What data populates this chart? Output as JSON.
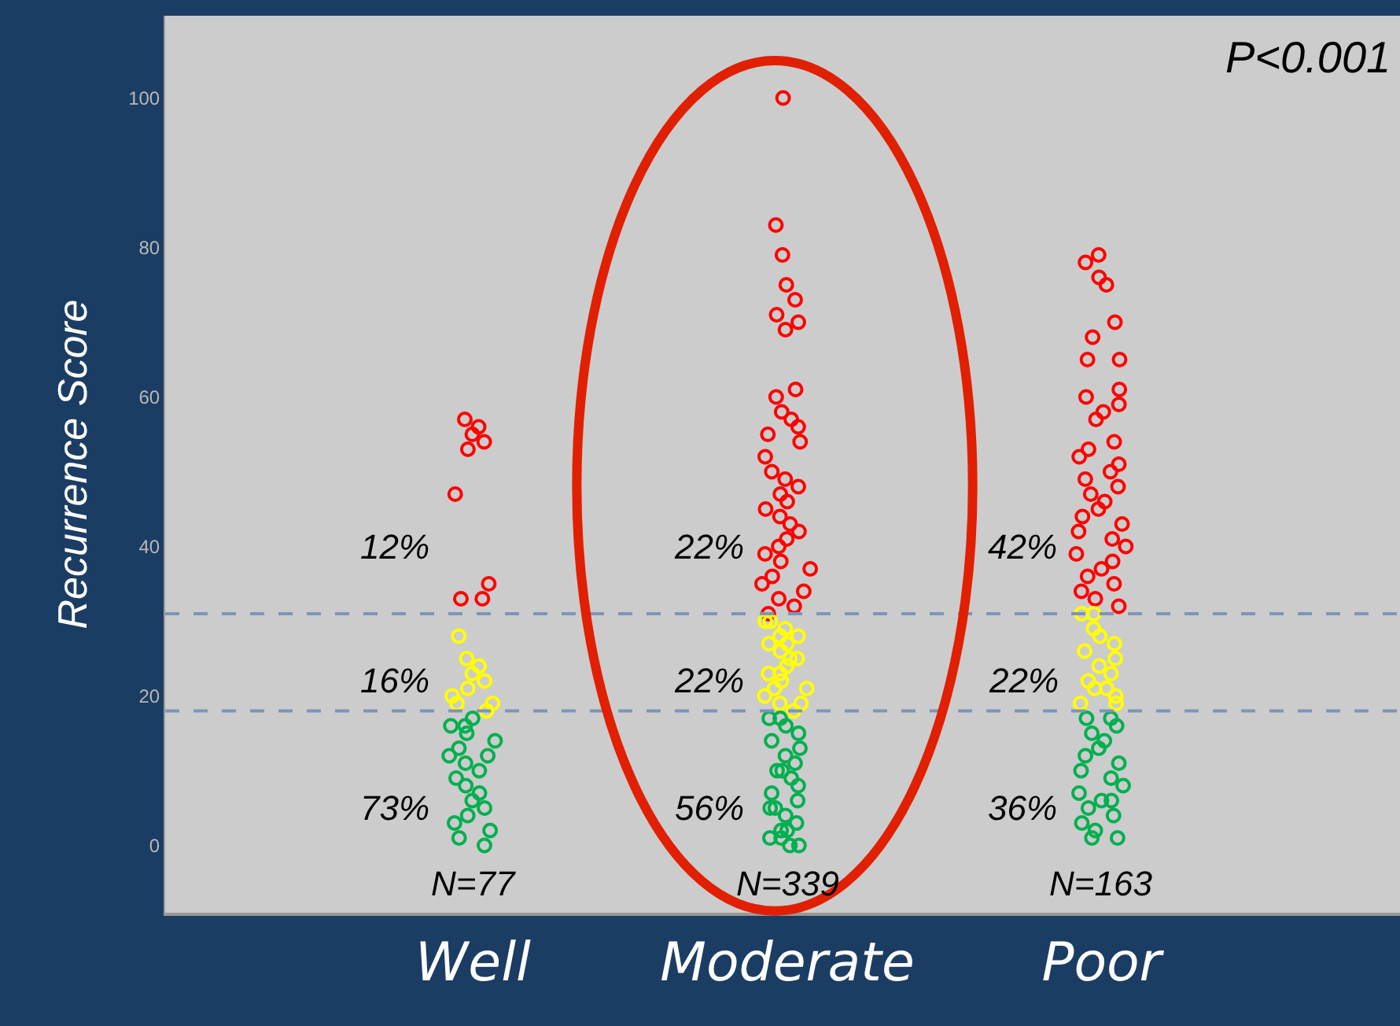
{
  "chart_data": {
    "type": "scatter",
    "ylabel": "Recurrence Score",
    "categories": [
      "Well",
      "Moderate",
      "Poor"
    ],
    "ylim": [
      -9,
      111
    ],
    "yticks": [
      0,
      20,
      40,
      60,
      80,
      100
    ],
    "grid": false,
    "marker": "circle",
    "series": [
      {
        "color": "#ff0000",
        "x": [
          "Well",
          "Well",
          "Well",
          "Well",
          "Well",
          "Well",
          "Well",
          "Well",
          "Well",
          "Moderate",
          "Moderate",
          "Moderate",
          "Moderate",
          "Moderate",
          "Moderate",
          "Moderate",
          "Moderate",
          "Moderate",
          "Moderate",
          "Moderate",
          "Moderate",
          "Moderate",
          "Moderate",
          "Moderate",
          "Moderate",
          "Moderate",
          "Moderate",
          "Moderate",
          "Moderate",
          "Moderate",
          "Moderate",
          "Moderate",
          "Moderate",
          "Moderate",
          "Moderate",
          "Moderate",
          "Moderate",
          "Moderate",
          "Moderate",
          "Moderate",
          "Moderate",
          "Moderate",
          "Moderate",
          "Moderate",
          "Moderate",
          "Poor",
          "Poor",
          "Poor",
          "Poor",
          "Poor",
          "Poor",
          "Poor",
          "Poor",
          "Poor",
          "Poor",
          "Poor",
          "Poor",
          "Poor",
          "Poor",
          "Poor",
          "Poor",
          "Poor",
          "Poor",
          "Poor",
          "Poor",
          "Poor",
          "Poor",
          "Poor",
          "Poor",
          "Poor",
          "Poor",
          "Poor",
          "Poor",
          "Poor",
          "Poor",
          "Poor",
          "Poor",
          "Poor",
          "Poor",
          "Poor",
          "Poor"
        ],
        "values": [
          57,
          56,
          55,
          54,
          53,
          47,
          35,
          33,
          33,
          100,
          83,
          79,
          75,
          73,
          71,
          70,
          69,
          61,
          60,
          58,
          57,
          56,
          55,
          54,
          52,
          50,
          49,
          48,
          47,
          46,
          45,
          44,
          43,
          42,
          41,
          40,
          39,
          38,
          37,
          36,
          35,
          34,
          33,
          32,
          31,
          79,
          78,
          75,
          76,
          70,
          68,
          65,
          65,
          60,
          61,
          59,
          58,
          57,
          54,
          53,
          52,
          51,
          50,
          49,
          48,
          47,
          46,
          45,
          44,
          43,
          42,
          41,
          40,
          39,
          38,
          37,
          36,
          35,
          34,
          33,
          32
        ]
      },
      {
        "color": "#ffff00",
        "x": [
          "Well",
          "Well",
          "Well",
          "Well",
          "Well",
          "Well",
          "Well",
          "Well",
          "Well",
          "Well",
          "Moderate",
          "Moderate",
          "Moderate",
          "Moderate",
          "Moderate",
          "Moderate",
          "Moderate",
          "Moderate",
          "Moderate",
          "Moderate",
          "Moderate",
          "Moderate",
          "Moderate",
          "Moderate",
          "Moderate",
          "Moderate",
          "Moderate",
          "Moderate",
          "Moderate",
          "Moderate",
          "Poor",
          "Poor",
          "Poor",
          "Poor",
          "Poor",
          "Poor",
          "Poor",
          "Poor",
          "Poor",
          "Poor",
          "Poor",
          "Poor",
          "Poor",
          "Poor",
          "Poor"
        ],
        "values": [
          28,
          25,
          24,
          23,
          22,
          21,
          20,
          19,
          19,
          18,
          30,
          30,
          29,
          28,
          28,
          27,
          27,
          26,
          25,
          25,
          24,
          23,
          23,
          22,
          21,
          21,
          20,
          19,
          19,
          18,
          31,
          31,
          29,
          28,
          27,
          26,
          25,
          24,
          23,
          22,
          21,
          21,
          20,
          19,
          19
        ]
      },
      {
        "color": "#00b050",
        "x": [
          "Well",
          "Well",
          "Well",
          "Well",
          "Well",
          "Well",
          "Well",
          "Well",
          "Well",
          "Well",
          "Well",
          "Well",
          "Well",
          "Well",
          "Well",
          "Well",
          "Well",
          "Well",
          "Well",
          "Well",
          "Moderate",
          "Moderate",
          "Moderate",
          "Moderate",
          "Moderate",
          "Moderate",
          "Moderate",
          "Moderate",
          "Moderate",
          "Moderate",
          "Moderate",
          "Moderate",
          "Moderate",
          "Moderate",
          "Moderate",
          "Moderate",
          "Moderate",
          "Moderate",
          "Moderate",
          "Moderate",
          "Moderate",
          "Moderate",
          "Moderate",
          "Moderate",
          "Poor",
          "Poor",
          "Poor",
          "Poor",
          "Poor",
          "Poor",
          "Poor",
          "Poor",
          "Poor",
          "Poor",
          "Poor",
          "Poor",
          "Poor",
          "Poor",
          "Poor",
          "Poor",
          "Poor",
          "Poor",
          "Poor",
          "Poor"
        ],
        "values": [
          17,
          16,
          16,
          15,
          14,
          13,
          12,
          12,
          11,
          10,
          9,
          8,
          7,
          6,
          5,
          4,
          3,
          2,
          1,
          0,
          17,
          17,
          16,
          15,
          14,
          13,
          12,
          11,
          10,
          10,
          9,
          8,
          7,
          6,
          5,
          5,
          4,
          3,
          2,
          2,
          1,
          1,
          0,
          0,
          17,
          17,
          16,
          15,
          14,
          13,
          12,
          11,
          10,
          9,
          6,
          8,
          7,
          6,
          5,
          4,
          3,
          2,
          1,
          1
        ]
      }
    ],
    "ref_lines": [
      {
        "axis": "y",
        "value": 31,
        "color": "#7f95b5",
        "line_style": "dashed"
      },
      {
        "axis": "y",
        "value": 18,
        "color": "#7f95b5",
        "line_style": "dashed"
      }
    ],
    "annotations": [
      "P<0.001",
      "12%",
      "16%",
      "73%",
      "22%",
      "22%",
      "56%",
      "42%",
      "22%",
      "36%",
      "N=77",
      "N=339",
      "N=163"
    ]
  }
}
